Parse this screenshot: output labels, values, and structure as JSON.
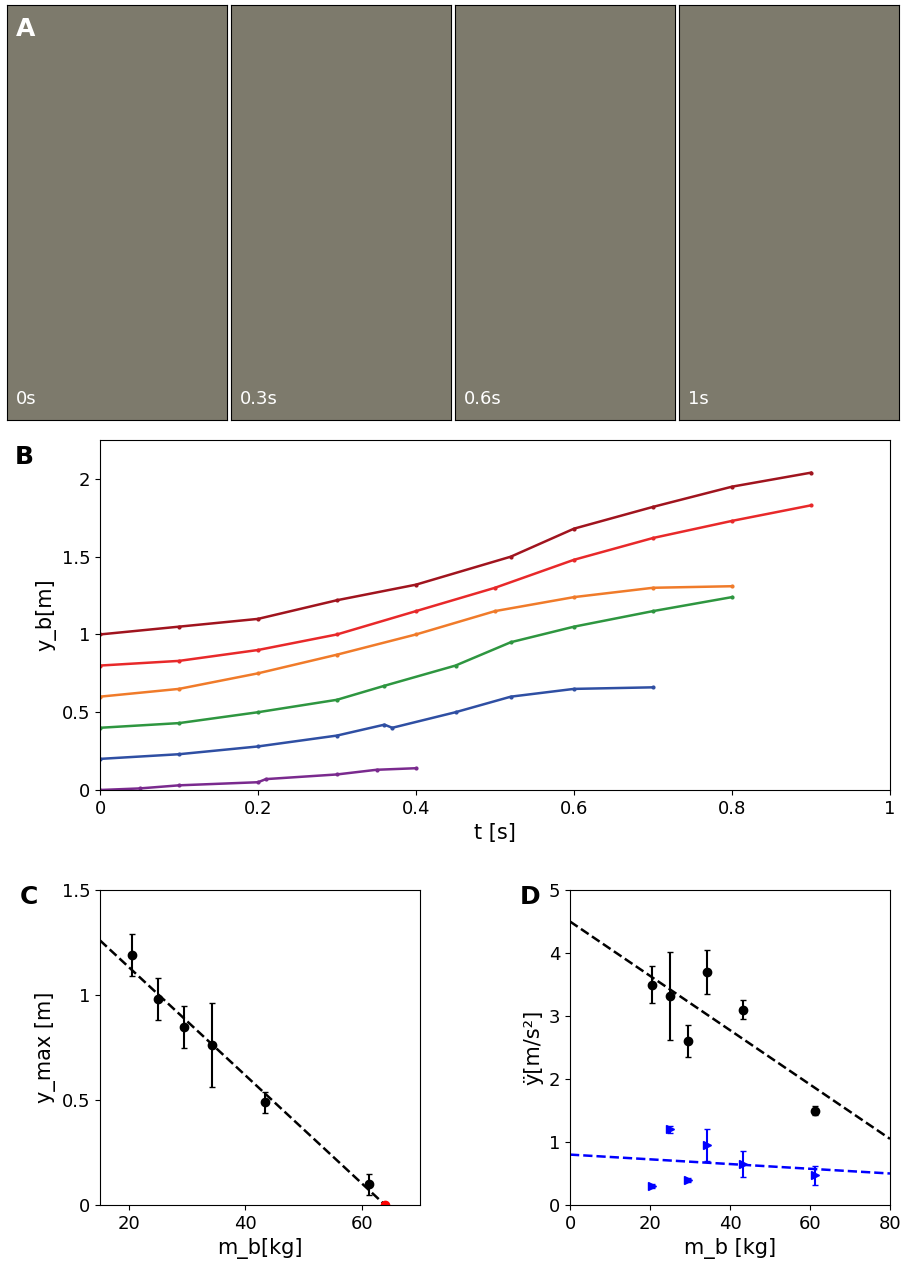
{
  "photo_panel": {
    "panel_label": "A",
    "frames": [
      "0s",
      "0.3s",
      "0.6s",
      "1s"
    ]
  },
  "chart_data": [
    {
      "type": "line",
      "panel_label": "B",
      "x_label": "t [s]",
      "y_label": "y_b[m]",
      "xlim": [
        0,
        1
      ],
      "xticks": [
        0,
        0.2,
        0.4,
        0.6,
        0.8,
        1
      ],
      "ylim": [
        0,
        2.25
      ],
      "yticks": [
        0,
        0.5,
        1,
        1.5,
        2
      ],
      "series": [
        {
          "type": "line",
          "color": "#a0141e",
          "marker": "dot",
          "line_style": "solid",
          "x": [
            0,
            0.1,
            0.2,
            0.3,
            0.4,
            0.52,
            0.6,
            0.7,
            0.8,
            0.9
          ],
          "values": [
            1.0,
            1.05,
            1.1,
            1.22,
            1.32,
            1.5,
            1.68,
            1.82,
            1.95,
            2.04
          ]
        },
        {
          "type": "line",
          "color": "#e8292a",
          "marker": "dot",
          "line_style": "solid",
          "x": [
            0,
            0.1,
            0.2,
            0.3,
            0.4,
            0.5,
            0.6,
            0.7,
            0.8,
            0.9
          ],
          "values": [
            0.8,
            0.83,
            0.9,
            1.0,
            1.15,
            1.3,
            1.48,
            1.62,
            1.73,
            1.83
          ]
        },
        {
          "type": "line",
          "color": "#f07b2a",
          "marker": "dot",
          "line_style": "solid",
          "x": [
            0,
            0.1,
            0.2,
            0.3,
            0.4,
            0.5,
            0.6,
            0.7,
            0.8
          ],
          "values": [
            0.6,
            0.65,
            0.75,
            0.87,
            1.0,
            1.15,
            1.24,
            1.3,
            1.31
          ]
        },
        {
          "type": "line",
          "color": "#2e9640",
          "marker": "dot",
          "line_style": "solid",
          "x": [
            0,
            0.1,
            0.2,
            0.3,
            0.36,
            0.45,
            0.52,
            0.6,
            0.7,
            0.8
          ],
          "values": [
            0.4,
            0.43,
            0.5,
            0.58,
            0.67,
            0.8,
            0.95,
            1.05,
            1.15,
            1.24
          ]
        },
        {
          "type": "line",
          "color": "#2f4fa3",
          "marker": "dot",
          "line_style": "solid",
          "x": [
            0,
            0.1,
            0.2,
            0.3,
            0.36,
            0.37,
            0.45,
            0.52,
            0.6,
            0.7
          ],
          "values": [
            0.2,
            0.23,
            0.28,
            0.35,
            0.42,
            0.4,
            0.5,
            0.6,
            0.65,
            0.66
          ]
        },
        {
          "type": "line",
          "color": "#7a2a8e",
          "marker": "dot",
          "line_style": "solid",
          "x": [
            0,
            0.05,
            0.1,
            0.2,
            0.21,
            0.3,
            0.35,
            0.4
          ],
          "values": [
            0,
            0.01,
            0.03,
            0.05,
            0.07,
            0.1,
            0.13,
            0.14
          ]
        }
      ]
    },
    {
      "type": "scatter",
      "panel_label": "C",
      "x_label": "m_b[kg]",
      "y_label": "y_max [m]",
      "xlim": [
        15,
        70
      ],
      "xticks": [
        20,
        40,
        60
      ],
      "ylim": [
        0,
        1.5
      ],
      "yticks": [
        0,
        0.5,
        1,
        1.5
      ],
      "series": [
        {
          "type": "scatter",
          "color": "#000000",
          "marker": "circle",
          "x": [
            20.5,
            25,
            29.5,
            34.3,
            43.3,
            61.3
          ],
          "values": [
            1.19,
            0.98,
            0.85,
            0.76,
            0.49,
            0.1
          ],
          "errors": [
            0.1,
            0.1,
            0.1,
            0.2,
            0.05,
            0.05
          ]
        },
        {
          "type": "line",
          "color": "#000000",
          "line_style": "dashed",
          "x": [
            15,
            64
          ],
          "values": [
            1.26,
            0
          ]
        },
        {
          "type": "scatter",
          "color": "#ff0000",
          "marker": "circle",
          "x": [
            64
          ],
          "values": [
            0
          ]
        }
      ]
    },
    {
      "type": "scatter",
      "panel_label": "D",
      "x_label": "m_b [kg]",
      "y_label": "ÿ[m/s²]",
      "xlim": [
        0,
        80
      ],
      "xticks": [
        0,
        20,
        40,
        60,
        80
      ],
      "ylim": [
        0,
        5
      ],
      "yticks": [
        0,
        1,
        2,
        3,
        4,
        5
      ],
      "series": [
        {
          "type": "scatter",
          "color": "#000000",
          "marker": "circle",
          "x": [
            20.5,
            25,
            29.5,
            34.3,
            43.3,
            61.3
          ],
          "values": [
            3.5,
            3.32,
            2.6,
            3.7,
            3.1,
            1.5
          ],
          "errors": [
            0.3,
            0.7,
            0.25,
            0.35,
            0.15,
            0.07
          ]
        },
        {
          "type": "line",
          "color": "#000000",
          "line_style": "dashed",
          "x": [
            0,
            80
          ],
          "values": [
            4.5,
            1.05
          ]
        },
        {
          "type": "scatter",
          "color": "#0000ff",
          "marker": "triangle_right",
          "x": [
            20.5,
            25,
            29.5,
            34.3,
            43.3,
            61.3
          ],
          "values": [
            0.3,
            1.2,
            0.4,
            0.95,
            0.65,
            0.47
          ],
          "errors": [
            0.03,
            0.05,
            0.03,
            0.25,
            0.2,
            0.15
          ]
        },
        {
          "type": "line",
          "color": "#0000ff",
          "line_style": "dashed",
          "x": [
            0,
            80
          ],
          "values": [
            0.8,
            0.5
          ]
        }
      ]
    }
  ]
}
